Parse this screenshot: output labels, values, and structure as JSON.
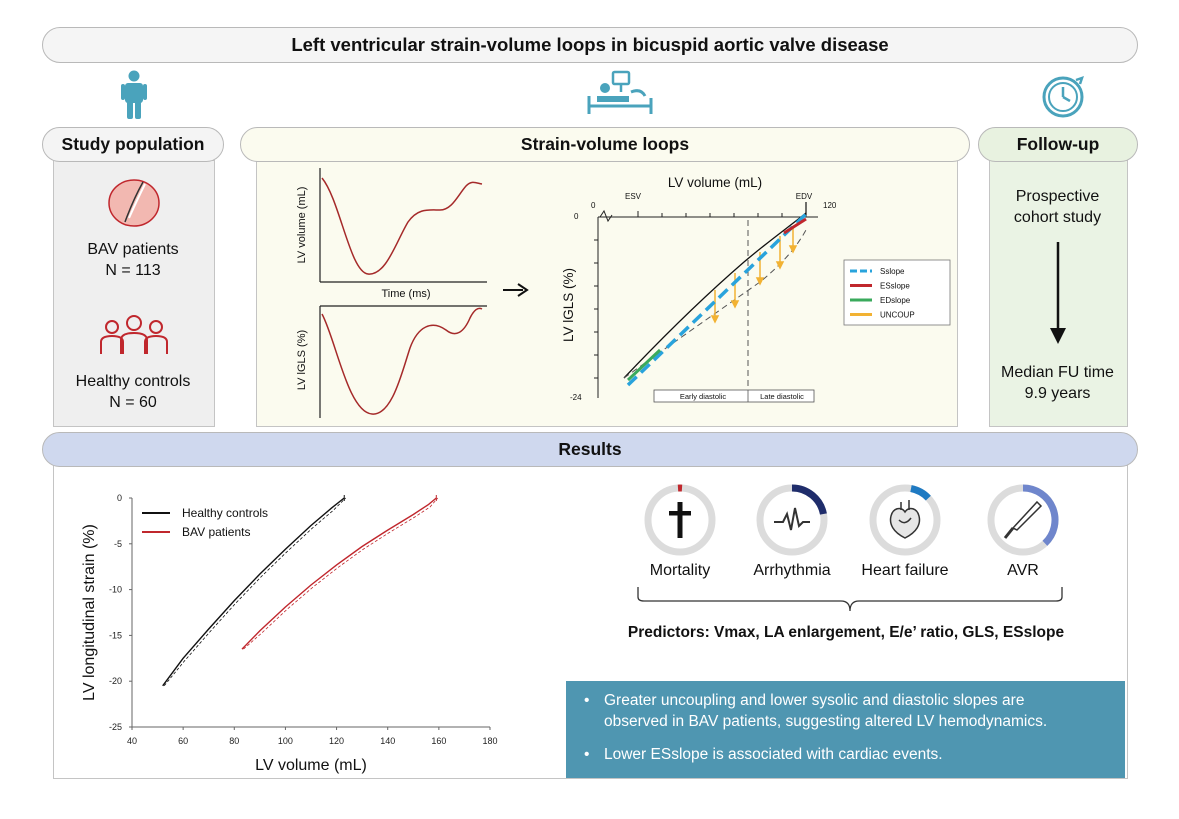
{
  "title": "Left ventricular strain-volume loops in bicuspid aortic valve disease",
  "study": {
    "heading": "Study population",
    "bav_label": "BAV patients",
    "bav_n": "N = 113",
    "ctrl_label": "Healthy controls",
    "ctrl_n": "N = 60"
  },
  "svl": {
    "heading": "Strain-volume loops",
    "vol_ylabel": "LV volume (mL)",
    "time_xlabel": "Time (ms)",
    "gls_ylabel": "LV lGLS (%)",
    "loop_xlabel": "LV volume (mL)",
    "loop_ylabel": "LV lGLS (%)",
    "esv": "ESV",
    "edv": "EDV",
    "tick_0": "0",
    "tick_120": "120",
    "tick_y0": "0",
    "tick_y24": "-24",
    "early": "Early diastolic",
    "late": "Late diastolic",
    "legend": [
      {
        "label": "Sslope",
        "color": "#29a3dc"
      },
      {
        "label": "ESslope",
        "color": "#c0272d"
      },
      {
        "label": "EDslope",
        "color": "#3aaa5c"
      },
      {
        "label": "UNCOUP",
        "color": "#f2b233"
      }
    ]
  },
  "followup": {
    "heading": "Follow-up",
    "line1": "Prospective",
    "line2": "cohort study",
    "median1": "Median FU time",
    "median2": "9.9 years"
  },
  "results": {
    "heading": "Results",
    "outcomes": [
      {
        "label": "Mortality",
        "color": "#c0272d",
        "icon": "cross-icon"
      },
      {
        "label": "Arrhythmia",
        "color": "#1f2d6b",
        "icon": "ecg-icon"
      },
      {
        "label": "Heart failure",
        "color": "#1f7ac2",
        "icon": "heart-icon"
      },
      {
        "label": "AVR",
        "color": "#6f86cc",
        "icon": "scalpel-icon"
      }
    ],
    "predictors": "Predictors: Vmax, LA enlargement, E/e’ ratio, GLS, ESslope",
    "bullet1_line1": "Greater uncoupling and lower sysolic and diastolic slopes are",
    "bullet1_line2": "observed in BAV patients, suggesting altered LV hemodynamics.",
    "bullet2": "Lower ESslope is associated with cardiac events."
  },
  "chart_data": {
    "type": "line",
    "xlabel": "LV volume (mL)",
    "ylabel": "LV longitudinal strain (%)",
    "xlim": [
      40,
      180
    ],
    "ylim": [
      -25,
      0
    ],
    "xticks": [
      40,
      60,
      80,
      100,
      120,
      140,
      160,
      180
    ],
    "yticks": [
      0,
      -5,
      -10,
      -15,
      -20,
      -25
    ],
    "legend_position": "top-left",
    "series": [
      {
        "name": "Healthy controls",
        "color": "#111111",
        "x": [
          52,
          60,
          70,
          80,
          90,
          100,
          110,
          118,
          123
        ],
        "y": [
          -20.5,
          -17.5,
          -14.3,
          -11.2,
          -8.3,
          -5.6,
          -3.0,
          -1.1,
          0
        ]
      },
      {
        "name": "BAV patients",
        "color": "#c0272d",
        "x": [
          83,
          90,
          100,
          110,
          120,
          130,
          140,
          150,
          156,
          159
        ],
        "y": [
          -16.5,
          -14.5,
          -11.9,
          -9.5,
          -7.3,
          -5.3,
          -3.5,
          -1.8,
          -0.7,
          0
        ]
      }
    ]
  }
}
